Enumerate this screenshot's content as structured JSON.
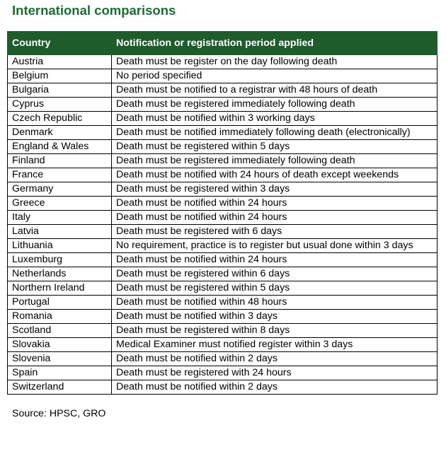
{
  "title": "International comparisons",
  "table": {
    "header": [
      "Country",
      "Notification or registration period applied"
    ],
    "rows": [
      [
        "Austria",
        "Death must be register on the day following death"
      ],
      [
        "Belgium",
        "No period specified"
      ],
      [
        "Bulgaria",
        "Death must be notified to a registrar with 48 hours of death"
      ],
      [
        "Cyprus",
        "Death must be registered immediately following death"
      ],
      [
        "Czech Republic",
        "Death must be notified within 3 working days"
      ],
      [
        "Denmark",
        "Death must be notified immediately following death (electronically)"
      ],
      [
        "England & Wales",
        "Death must be registered within 5 days"
      ],
      [
        "Finland",
        "Death must be registered immediately following death"
      ],
      [
        "France",
        "Death must be notified with 24 hours of death except weekends"
      ],
      [
        "Germany",
        "Death must be registered within 3 days"
      ],
      [
        "Greece",
        "Death must be notified within 24 hours"
      ],
      [
        "Italy",
        "Death must be notified within 24 hours"
      ],
      [
        "Latvia",
        "Death must be registered with 6 days"
      ],
      [
        "Lithuania",
        "No requirement, practice is to register but usual done within 3 days"
      ],
      [
        "Luxemburg",
        "Death must be notified within 24 hours"
      ],
      [
        "Netherlands",
        "Death must be registered within 6 days"
      ],
      [
        "Northern Ireland",
        "Death must be registered within 5 days"
      ],
      [
        "Portugal",
        "Death must be notified within 48 hours"
      ],
      [
        "Romania",
        "Death must be notified within 3 days"
      ],
      [
        "Scotland",
        "Death must be registered within 8 days"
      ],
      [
        "Slovakia",
        "Medical Examiner must notified register within 3 days"
      ],
      [
        "Slovenia",
        "Death must be notified within 2 days"
      ],
      [
        "Spain",
        "Death must be registered with 24 hours"
      ],
      [
        "Switzerland",
        "Death must be notified within 2 days"
      ]
    ]
  },
  "source": "Source: HPSC, GRO"
}
